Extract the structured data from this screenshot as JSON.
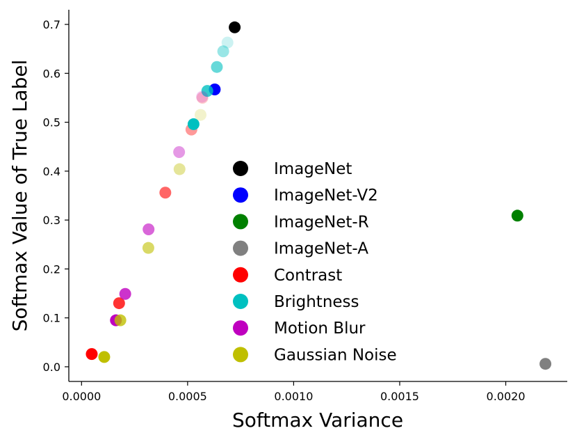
{
  "chart_data": {
    "type": "scatter",
    "xlabel": "Softmax Variance",
    "ylabel": "Softmax Value of True Label",
    "xlim": [
      -6e-05,
      0.00229
    ],
    "ylim": [
      -0.03,
      0.73
    ],
    "x_ticks": [
      "0.0000",
      "0.0005",
      "0.0010",
      "0.0015",
      "0.0020"
    ],
    "x_tick_values": [
      0.0,
      0.0005,
      0.001,
      0.0015,
      0.002
    ],
    "y_ticks": [
      "0.0",
      "0.1",
      "0.2",
      "0.3",
      "0.4",
      "0.5",
      "0.6",
      "0.7"
    ],
    "y_tick_values": [
      0.0,
      0.1,
      0.2,
      0.3,
      0.4,
      0.5,
      0.6,
      0.7
    ],
    "grid": false,
    "legend_position": "center",
    "series": [
      {
        "name": "ImageNet",
        "color": "#000000",
        "points": [
          {
            "x": 0.000722,
            "y": 0.694,
            "alpha": 1.0
          }
        ]
      },
      {
        "name": "ImageNet-V2",
        "color": "#0000ff",
        "points": [
          {
            "x": 0.000628,
            "y": 0.567,
            "alpha": 1.0
          }
        ]
      },
      {
        "name": "ImageNet-R",
        "color": "#008000",
        "points": [
          {
            "x": 0.002055,
            "y": 0.309,
            "alpha": 1.0
          }
        ]
      },
      {
        "name": "ImageNet-A",
        "color": "#808080",
        "points": [
          {
            "x": 0.002187,
            "y": 0.006,
            "alpha": 1.0
          }
        ]
      },
      {
        "name": "Contrast",
        "color": "#ff0000",
        "points": [
          {
            "x": 4.8e-05,
            "y": 0.026,
            "alpha": 1.0
          },
          {
            "x": 0.000177,
            "y": 0.13,
            "alpha": 0.8
          },
          {
            "x": 0.000395,
            "y": 0.356,
            "alpha": 0.6
          },
          {
            "x": 0.000518,
            "y": 0.485,
            "alpha": 0.4
          },
          {
            "x": 0.00057,
            "y": 0.55,
            "alpha": 0.2
          }
        ]
      },
      {
        "name": "Brightness",
        "color": "#00c0c0",
        "points": [
          {
            "x": 0.000528,
            "y": 0.496,
            "alpha": 1.0
          },
          {
            "x": 0.000593,
            "y": 0.564,
            "alpha": 0.8
          },
          {
            "x": 0.000638,
            "y": 0.613,
            "alpha": 0.6
          },
          {
            "x": 0.000668,
            "y": 0.645,
            "alpha": 0.4
          },
          {
            "x": 0.000688,
            "y": 0.663,
            "alpha": 0.2
          }
        ]
      },
      {
        "name": "Motion Blur",
        "color": "#bf00bf",
        "points": [
          {
            "x": 0.000162,
            "y": 0.095,
            "alpha": 1.0
          },
          {
            "x": 0.000206,
            "y": 0.149,
            "alpha": 0.8
          },
          {
            "x": 0.000316,
            "y": 0.281,
            "alpha": 0.6
          },
          {
            "x": 0.00046,
            "y": 0.439,
            "alpha": 0.4
          },
          {
            "x": 0.000568,
            "y": 0.552,
            "alpha": 0.2
          }
        ]
      },
      {
        "name": "Gaussian Noise",
        "color": "#bfbf00",
        "points": [
          {
            "x": 0.000107,
            "y": 0.02,
            "alpha": 1.0
          },
          {
            "x": 0.000183,
            "y": 0.095,
            "alpha": 0.8
          },
          {
            "x": 0.000315,
            "y": 0.243,
            "alpha": 0.6
          },
          {
            "x": 0.000462,
            "y": 0.404,
            "alpha": 0.4
          },
          {
            "x": 0.000561,
            "y": 0.515,
            "alpha": 0.2
          }
        ]
      }
    ]
  }
}
